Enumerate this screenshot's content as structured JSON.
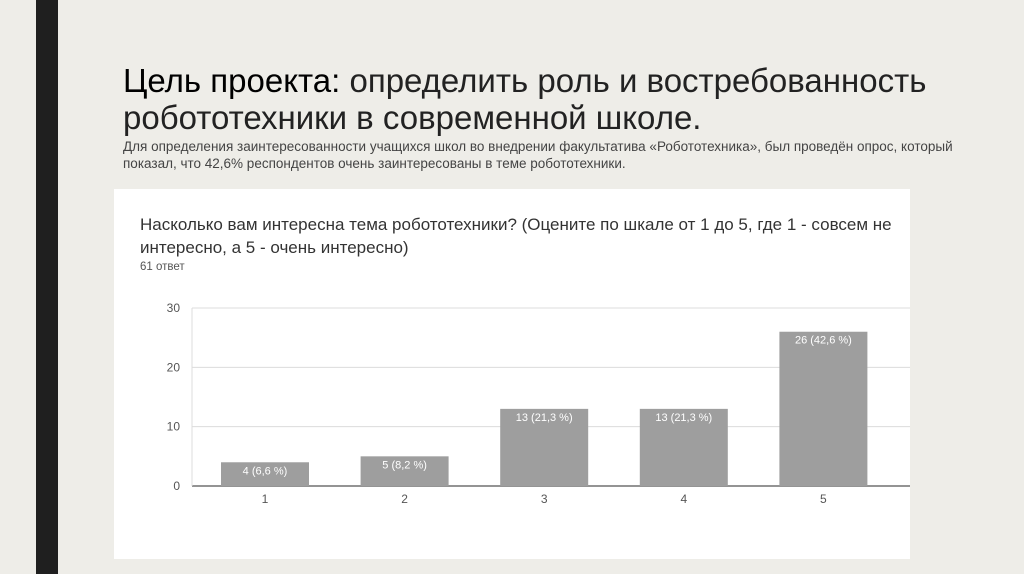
{
  "slide": {
    "title_bold": "Цель проекта:",
    "title_rest": " определить роль и востребованность робототехники в современной школе.",
    "subtitle": "Для определения заинтересованности учащихся школ во внедрении факультатива «Робототехника», был проведён опрос, который показал, что 42,6% респондентов очень заинтересованы в теме робототехники."
  },
  "chart_data": {
    "type": "bar",
    "title": "Насколько вам интересна тема робототехники? (Оцените по шкале от 1 до 5, где 1 - совсем не интересно, а 5 - очень интересно)",
    "response_count": "61 ответ",
    "categories": [
      "1",
      "2",
      "3",
      "4",
      "5"
    ],
    "values": [
      4,
      5,
      13,
      13,
      26
    ],
    "data_labels": [
      "4 (6,6 %)",
      "5 (8,2 %)",
      "13 (21,3 %)",
      "13 (21,3 %)",
      "26 (42,6 %)"
    ],
    "ylim": [
      0,
      30
    ],
    "yticks": [
      0,
      10,
      20,
      30
    ],
    "grid": true,
    "bar_color": "#9e9e9e",
    "xlabel": "",
    "ylabel": ""
  }
}
